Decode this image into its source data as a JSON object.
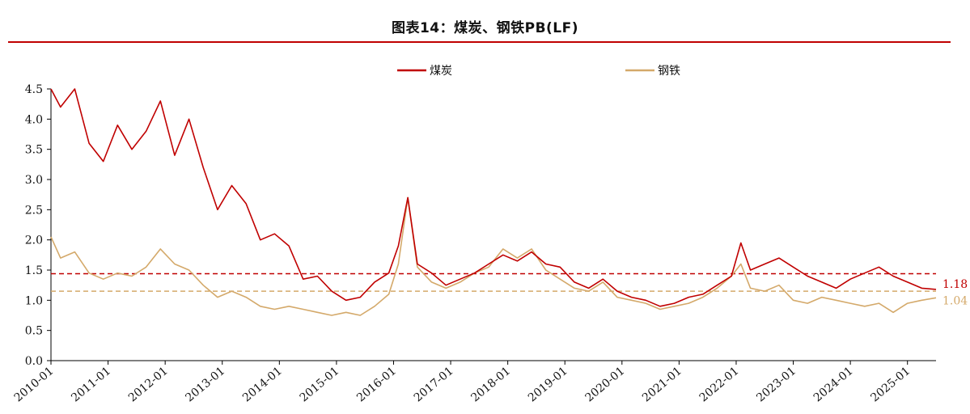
{
  "title": "图表14：煤炭、钢铁PB(LF)",
  "colors": {
    "coal": "#c00000",
    "steel": "#d4a96a",
    "rule": "#c00000"
  },
  "chart_data": {
    "type": "line",
    "title": "图表14：煤炭、钢铁PB(LF)",
    "xlabel": "",
    "ylabel": "",
    "ylim": [
      0,
      4.5
    ],
    "yticks": [
      "0.0",
      "0.5",
      "1.0",
      "1.5",
      "2.0",
      "2.5",
      "3.0",
      "3.5",
      "4.0",
      "4.5"
    ],
    "xticks": [
      "2010-01",
      "2011-01",
      "2012-01",
      "2013-01",
      "2014-01",
      "2015-01",
      "2016-01",
      "2017-01",
      "2018-01",
      "2019-01",
      "2020-01",
      "2021-01",
      "2022-01",
      "2023-01",
      "2024-01",
      "2025-01"
    ],
    "xlim": [
      "2010-01",
      "2025-07"
    ],
    "legend_position": "top-center",
    "grid": false,
    "series": [
      {
        "name": "煤炭",
        "color": "#c00000",
        "end_label": "1.18",
        "reference_line": 1.44,
        "points": [
          [
            "2010-01",
            4.6
          ],
          [
            "2010-03",
            4.2
          ],
          [
            "2010-06",
            4.6
          ],
          [
            "2010-09",
            3.6
          ],
          [
            "2010-12",
            3.3
          ],
          [
            "2011-03",
            3.9
          ],
          [
            "2011-06",
            3.5
          ],
          [
            "2011-09",
            3.8
          ],
          [
            "2011-12",
            4.3
          ],
          [
            "2012-03",
            3.4
          ],
          [
            "2012-06",
            4.0
          ],
          [
            "2012-09",
            3.2
          ],
          [
            "2012-12",
            2.5
          ],
          [
            "2013-03",
            2.9
          ],
          [
            "2013-06",
            2.6
          ],
          [
            "2013-09",
            2.0
          ],
          [
            "2013-12",
            2.1
          ],
          [
            "2014-03",
            1.9
          ],
          [
            "2014-06",
            1.35
          ],
          [
            "2014-09",
            1.4
          ],
          [
            "2014-12",
            1.15
          ],
          [
            "2015-03",
            1.0
          ],
          [
            "2015-06",
            1.05
          ],
          [
            "2015-09",
            1.3
          ],
          [
            "2015-12",
            1.45
          ],
          [
            "2016-02",
            1.9
          ],
          [
            "2016-04",
            2.7
          ],
          [
            "2016-06",
            1.6
          ],
          [
            "2016-09",
            1.45
          ],
          [
            "2016-12",
            1.25
          ],
          [
            "2017-03",
            1.35
          ],
          [
            "2017-06",
            1.45
          ],
          [
            "2017-09",
            1.6
          ],
          [
            "2017-12",
            1.75
          ],
          [
            "2018-03",
            1.65
          ],
          [
            "2018-06",
            1.8
          ],
          [
            "2018-09",
            1.6
          ],
          [
            "2018-12",
            1.55
          ],
          [
            "2019-03",
            1.3
          ],
          [
            "2019-06",
            1.2
          ],
          [
            "2019-09",
            1.35
          ],
          [
            "2019-12",
            1.15
          ],
          [
            "2020-03",
            1.05
          ],
          [
            "2020-06",
            1.0
          ],
          [
            "2020-09",
            0.9
          ],
          [
            "2020-12",
            0.95
          ],
          [
            "2021-03",
            1.05
          ],
          [
            "2021-06",
            1.1
          ],
          [
            "2021-09",
            1.25
          ],
          [
            "2021-12",
            1.4
          ],
          [
            "2022-02",
            1.95
          ],
          [
            "2022-04",
            1.5
          ],
          [
            "2022-07",
            1.6
          ],
          [
            "2022-10",
            1.7
          ],
          [
            "2023-01",
            1.55
          ],
          [
            "2023-04",
            1.4
          ],
          [
            "2023-07",
            1.3
          ],
          [
            "2023-10",
            1.2
          ],
          [
            "2024-01",
            1.35
          ],
          [
            "2024-04",
            1.45
          ],
          [
            "2024-07",
            1.55
          ],
          [
            "2024-10",
            1.4
          ],
          [
            "2025-01",
            1.3
          ],
          [
            "2025-04",
            1.2
          ],
          [
            "2025-07",
            1.18
          ]
        ]
      },
      {
        "name": "钢铁",
        "color": "#d4a96a",
        "end_label": "1.04",
        "reference_line": 1.15,
        "points": [
          [
            "2010-01",
            2.05
          ],
          [
            "2010-03",
            1.7
          ],
          [
            "2010-06",
            1.8
          ],
          [
            "2010-09",
            1.45
          ],
          [
            "2010-12",
            1.35
          ],
          [
            "2011-03",
            1.45
          ],
          [
            "2011-06",
            1.4
          ],
          [
            "2011-09",
            1.55
          ],
          [
            "2011-12",
            1.85
          ],
          [
            "2012-03",
            1.6
          ],
          [
            "2012-06",
            1.5
          ],
          [
            "2012-09",
            1.25
          ],
          [
            "2012-12",
            1.05
          ],
          [
            "2013-03",
            1.15
          ],
          [
            "2013-06",
            1.05
          ],
          [
            "2013-09",
            0.9
          ],
          [
            "2013-12",
            0.85
          ],
          [
            "2014-03",
            0.9
          ],
          [
            "2014-06",
            0.85
          ],
          [
            "2014-09",
            0.8
          ],
          [
            "2014-12",
            0.75
          ],
          [
            "2015-03",
            0.8
          ],
          [
            "2015-06",
            0.75
          ],
          [
            "2015-09",
            0.9
          ],
          [
            "2015-12",
            1.1
          ],
          [
            "2016-02",
            1.6
          ],
          [
            "2016-04",
            2.7
          ],
          [
            "2016-06",
            1.55
          ],
          [
            "2016-09",
            1.3
          ],
          [
            "2016-12",
            1.2
          ],
          [
            "2017-03",
            1.3
          ],
          [
            "2017-06",
            1.45
          ],
          [
            "2017-09",
            1.55
          ],
          [
            "2017-12",
            1.85
          ],
          [
            "2018-03",
            1.7
          ],
          [
            "2018-06",
            1.85
          ],
          [
            "2018-09",
            1.5
          ],
          [
            "2018-12",
            1.35
          ],
          [
            "2019-03",
            1.2
          ],
          [
            "2019-06",
            1.15
          ],
          [
            "2019-09",
            1.3
          ],
          [
            "2019-12",
            1.05
          ],
          [
            "2020-03",
            1.0
          ],
          [
            "2020-06",
            0.95
          ],
          [
            "2020-09",
            0.85
          ],
          [
            "2020-12",
            0.9
          ],
          [
            "2021-03",
            0.95
          ],
          [
            "2021-06",
            1.05
          ],
          [
            "2021-09",
            1.2
          ],
          [
            "2021-12",
            1.4
          ],
          [
            "2022-02",
            1.6
          ],
          [
            "2022-04",
            1.2
          ],
          [
            "2022-07",
            1.15
          ],
          [
            "2022-10",
            1.25
          ],
          [
            "2023-01",
            1.0
          ],
          [
            "2023-04",
            0.95
          ],
          [
            "2023-07",
            1.05
          ],
          [
            "2023-10",
            1.0
          ],
          [
            "2024-01",
            0.95
          ],
          [
            "2024-04",
            0.9
          ],
          [
            "2024-07",
            0.95
          ],
          [
            "2024-10",
            0.8
          ],
          [
            "2025-01",
            0.95
          ],
          [
            "2025-04",
            1.0
          ],
          [
            "2025-07",
            1.04
          ]
        ]
      }
    ]
  }
}
